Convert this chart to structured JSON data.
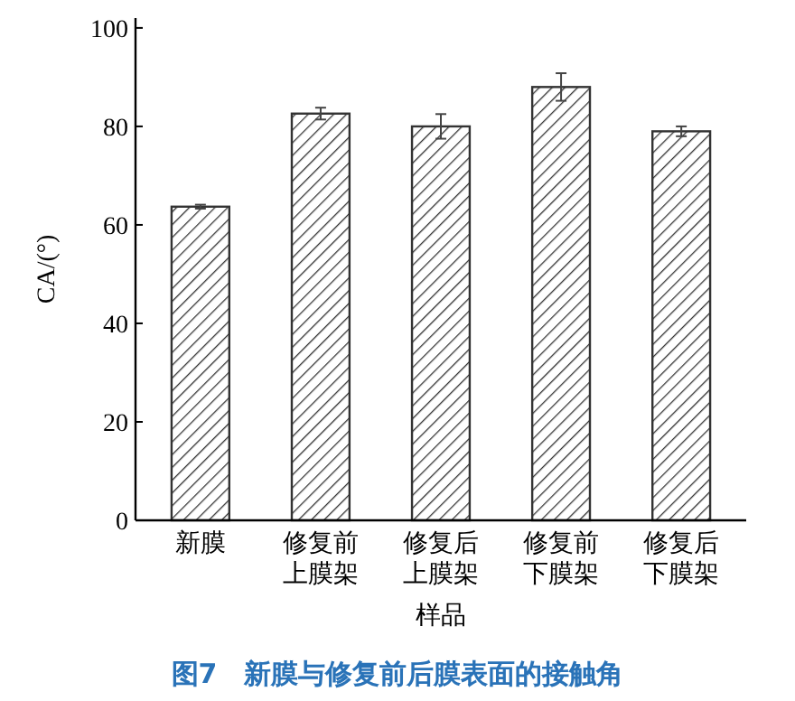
{
  "chart_data": {
    "type": "bar",
    "title": "图7　新膜与修复前后膜表面的接触角",
    "xlabel": "样品",
    "ylabel": "CA/(°)",
    "categories": [
      "新膜",
      "修复前上膜架",
      "修复后上膜架",
      "修复前下膜架",
      "修复后下膜架"
    ],
    "values": [
      63.7,
      82.6,
      80,
      88,
      79
    ],
    "errors": [
      0.4,
      1.2,
      2.5,
      2.8,
      1
    ],
    "color": "#333333",
    "ylim": [
      0,
      102
    ],
    "yticks": [
      0,
      20,
      40,
      60,
      80,
      100
    ],
    "grid": false
  }
}
